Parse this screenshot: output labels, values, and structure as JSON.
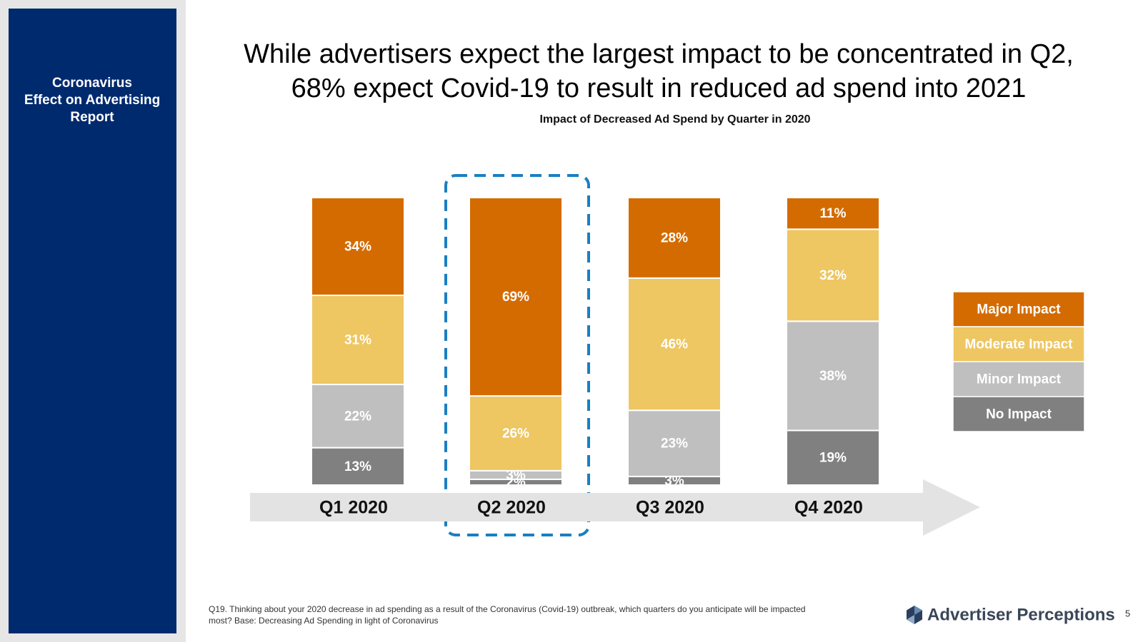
{
  "sidebar": {
    "title_lines": [
      "Coronavirus",
      "Effect on Advertising",
      "Report"
    ]
  },
  "header": {
    "title_lines": [
      "While advertisers expect the largest impact to be concentrated in Q2,",
      "68% expect Covid-19 to result in reduced ad spend into 2021"
    ]
  },
  "chart_data": {
    "type": "stacked_bar",
    "title": "Impact of Decreased Ad Spend by Quarter in 2020",
    "categories": [
      "Q1 2020",
      "Q2 2020",
      "Q3 2020",
      "Q4 2020"
    ],
    "series": [
      {
        "name": "No Impact",
        "color": "#808080",
        "values": [
          13,
          2,
          3,
          19
        ],
        "value_labels": [
          "13%",
          "2%",
          "3%",
          "19%"
        ]
      },
      {
        "name": "Minor Impact",
        "color": "#bfbfbf",
        "values": [
          22,
          3,
          23,
          38
        ],
        "value_labels": [
          "22%",
          "3%",
          "23%",
          "38%"
        ]
      },
      {
        "name": "Moderate Impact",
        "color": "#eec662",
        "values": [
          31,
          26,
          46,
          32
        ],
        "value_labels": [
          "31%",
          "26%",
          "46%",
          "32%"
        ]
      },
      {
        "name": "Major Impact",
        "color": "#d46b00",
        "values": [
          34,
          69,
          28,
          11
        ],
        "value_labels": [
          "34%",
          "69%",
          "28%",
          "11%"
        ]
      }
    ],
    "legend": "right"
  },
  "footnote_lines": [
    "Q19. Thinking about your 2020 decrease in ad spending as a result of the Coronavirus (Covid-19) outbreak, which quarters do you anticipate will be impacted",
    "most?   Base: Decreasing Ad Spending in light of Coronavirus"
  ],
  "logo": "Advertiser Perceptions",
  "page_number": "5"
}
